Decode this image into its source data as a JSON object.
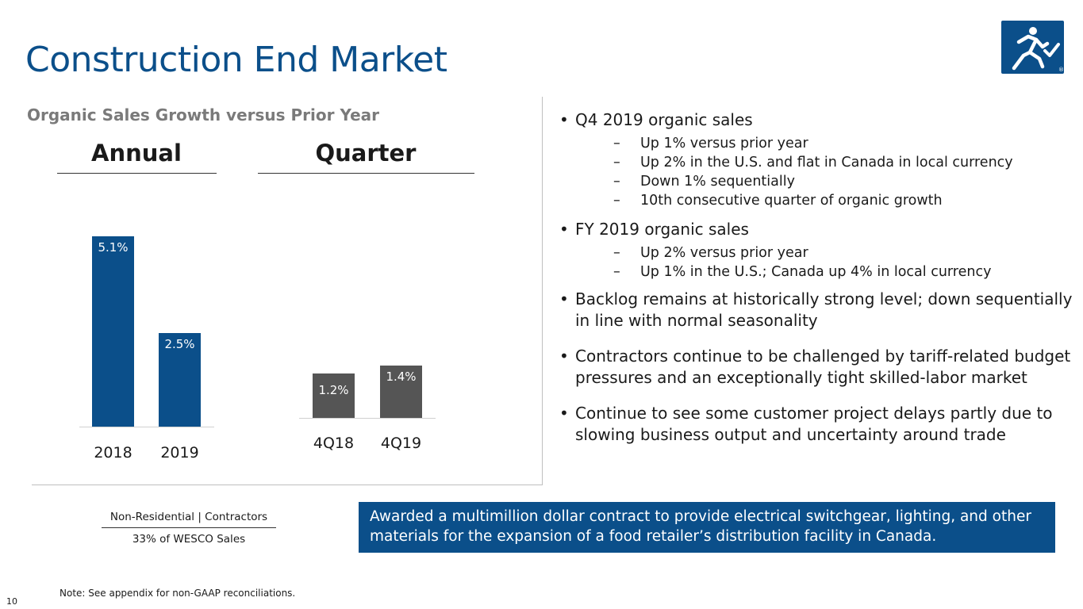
{
  "slide": {
    "title": "Construction End Market",
    "page_number": "10",
    "note": "Note: See appendix for non-GAAP reconciliations."
  },
  "chart": {
    "subtitle": "Organic Sales Growth versus Prior Year",
    "annual_heading": "Annual",
    "quarter_heading": "Quarter"
  },
  "chart_data": {
    "type": "bar",
    "title": "Organic Sales Growth versus Prior Year",
    "unit": "%",
    "groups": [
      {
        "name": "Annual",
        "categories": [
          "2018",
          "2019"
        ],
        "values": [
          5.1,
          2.5
        ],
        "labels": [
          "5.1%",
          "2.5%"
        ],
        "color": "#0b4f8a"
      },
      {
        "name": "Quarter",
        "categories": [
          "4Q18",
          "4Q19"
        ],
        "values": [
          1.2,
          1.4
        ],
        "labels": [
          "1.2%",
          "1.4%"
        ],
        "color": "#555555"
      }
    ],
    "ylim": [
      0,
      5.1
    ],
    "grid": false,
    "legend": "none"
  },
  "bullets": [
    {
      "text": "Q4 2019 organic sales",
      "subs": [
        "Up 1% versus prior year",
        "Up 2% in the U.S. and flat in Canada in local currency",
        "Down 1% sequentially",
        "10th consecutive quarter of organic growth"
      ]
    },
    {
      "text": "FY 2019 organic sales",
      "subs": [
        "Up 2% versus prior year",
        "Up 1% in the U.S.; Canada up 4% in local currency"
      ]
    },
    {
      "text": "Backlog remains at historically strong level; down sequentially in line with normal seasonality",
      "subs": []
    },
    {
      "text": "Contractors continue to be challenged by tariff-related budget pressures and an exceptionally tight skilled-labor market",
      "subs": []
    },
    {
      "text": "Continue to see some customer project delays partly due to slowing business output and uncertainty around trade",
      "subs": []
    }
  ],
  "segment": {
    "name": "Non-Residential | Contractors",
    "share": "33% of WESCO Sales"
  },
  "callout": {
    "text": "Awarded a multimillion dollar contract to provide electrical switchgear, lighting, and other materials for the expansion of a food retailer’s distribution facility in Canada."
  },
  "logo": {
    "icon": "runner-check-icon",
    "mark": "®",
    "color": "#0b4f8a"
  }
}
